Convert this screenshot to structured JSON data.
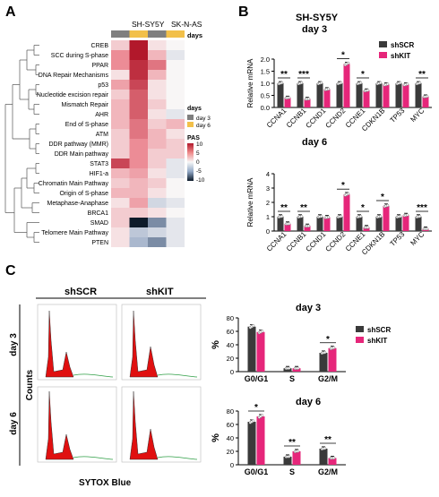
{
  "panel_labels": {
    "a": "A",
    "b": "B",
    "c": "C"
  },
  "heatmap": {
    "col_headers": [
      "SH-SY5Y",
      "SK-N-AS"
    ],
    "days_label": "days",
    "rows": [
      "CREB",
      "SCC during S-phase",
      "PPAR",
      "DNA Repair Mechanisms",
      "p53",
      "Nucleotide excision repair",
      "Mismatch Repair",
      "AHR",
      "End of S-phase",
      "ATM",
      "DDR pathway (MMR)",
      "DDR Main pathway",
      "STAT3",
      "HIF1-a",
      "Chromatin Main Pathway",
      "Origin of S-phase",
      "Metaphase-Anaphase",
      "BRCA1",
      "SMAD",
      "Telomere Main Pathway",
      "PTEN"
    ],
    "values": [
      [
        2,
        10,
        1,
        0
      ],
      [
        5,
        10,
        3,
        -1
      ],
      [
        5,
        9,
        6,
        0
      ],
      [
        1,
        9,
        3,
        0
      ],
      [
        4,
        8,
        1,
        0
      ],
      [
        2,
        7,
        1,
        0
      ],
      [
        3,
        7,
        2,
        0
      ],
      [
        3,
        7,
        1,
        -1
      ],
      [
        3,
        6,
        2,
        3
      ],
      [
        2,
        6,
        3,
        1
      ],
      [
        2,
        5,
        3,
        2
      ],
      [
        2,
        5,
        2,
        2
      ],
      [
        8,
        5,
        2,
        -1
      ],
      [
        3,
        4,
        1,
        -1
      ],
      [
        2,
        3,
        2,
        0
      ],
      [
        3,
        3,
        1,
        0
      ],
      [
        1,
        4,
        -2,
        -1
      ],
      [
        2,
        2,
        1,
        0
      ],
      [
        2,
        -10,
        -6,
        -1
      ],
      [
        1,
        -3,
        -2,
        -1
      ],
      [
        1,
        -4,
        -6,
        -1
      ]
    ],
    "legend_days": {
      "title": "days",
      "items": [
        {
          "label": "day 3",
          "color": "#7f7f7f"
        },
        {
          "label": "day 6",
          "color": "#f2c04a"
        }
      ]
    },
    "legend_pas": {
      "title": "PAS",
      "ticks": [
        "10",
        "5",
        "0",
        "-5",
        "-10"
      ]
    }
  },
  "chart_data": [
    {
      "type": "bar",
      "title": "SH-SY5Y",
      "subtitle": "day 3",
      "ylabel": "Relative mRNA",
      "ylim": [
        0,
        2
      ],
      "yticks": [
        "0.0",
        "0.5",
        "1.0",
        "1.5",
        "2.0"
      ],
      "categories": [
        "CCNA1",
        "CCNB1",
        "CCND1",
        "CCND2",
        "CCNE1",
        "CDKN1B",
        "TP53",
        "MYC"
      ],
      "series": [
        {
          "name": "shSCR",
          "color": "#3a3a3a",
          "values": [
            1.0,
            1.0,
            1.0,
            1.0,
            1.0,
            1.0,
            1.0,
            1.0
          ]
        },
        {
          "name": "shKIT",
          "color": "#e6267a",
          "values": [
            0.4,
            0.35,
            0.75,
            1.8,
            0.7,
            0.95,
            0.95,
            0.45
          ]
        }
      ],
      "significance": [
        "**",
        "***",
        "",
        "*",
        "*",
        "",
        "",
        "**"
      ]
    },
    {
      "type": "bar",
      "title": "",
      "subtitle": "day 6",
      "ylabel": "Relative mRNA",
      "ylim": [
        0,
        4
      ],
      "yticks": [
        "0",
        "1",
        "2",
        "3",
        "4"
      ],
      "categories": [
        "CCNA1",
        "CCNB1",
        "CCND1",
        "CCND2",
        "CCNE1",
        "CDKN1B",
        "TP53",
        "MYC"
      ],
      "series": [
        {
          "name": "shSCR",
          "color": "#3a3a3a",
          "values": [
            1.0,
            1.0,
            1.0,
            1.0,
            1.0,
            1.0,
            1.0,
            1.0
          ]
        },
        {
          "name": "shKIT",
          "color": "#e6267a",
          "values": [
            0.5,
            0.35,
            0.95,
            2.55,
            0.25,
            1.75,
            1.1,
            0.15
          ]
        }
      ],
      "significance": [
        "**",
        "**",
        "",
        "*",
        "*",
        "*",
        "",
        "***"
      ]
    },
    {
      "type": "bar",
      "title": "day 3",
      "ylabel": "%",
      "ylim": [
        0,
        80
      ],
      "yticks": [
        "0",
        "20",
        "40",
        "60",
        "80"
      ],
      "categories": [
        "G0/G1",
        "S",
        "G2/M"
      ],
      "series": [
        {
          "name": "shSCR",
          "color": "#3a3a3a",
          "values": [
            67,
            5,
            28
          ]
        },
        {
          "name": "shKIT",
          "color": "#e6267a",
          "values": [
            59,
            5,
            35
          ]
        }
      ],
      "significance": [
        "",
        "",
        "*"
      ]
    },
    {
      "type": "bar",
      "title": "day 6",
      "ylabel": "%",
      "ylim": [
        0,
        80
      ],
      "yticks": [
        "0",
        "20",
        "40",
        "60",
        "80"
      ],
      "categories": [
        "G0/G1",
        "S",
        "G2/M"
      ],
      "series": [
        {
          "name": "shSCR",
          "color": "#3a3a3a",
          "values": [
            64,
            12,
            24
          ]
        },
        {
          "name": "shKIT",
          "color": "#e6267a",
          "values": [
            72,
            20,
            10
          ]
        }
      ],
      "significance": [
        "*",
        "**",
        "**"
      ]
    }
  ],
  "legend": {
    "items": [
      {
        "label": "shSCR",
        "color": "#3a3a3a"
      },
      {
        "label": "shKIT",
        "color": "#e6267a"
      }
    ]
  },
  "flow": {
    "col_labels": [
      "shSCR",
      "shKIT"
    ],
    "row_labels": [
      "day 3",
      "day 6"
    ],
    "ylabel": "Counts",
    "xlabel": "SYTOX Blue"
  }
}
